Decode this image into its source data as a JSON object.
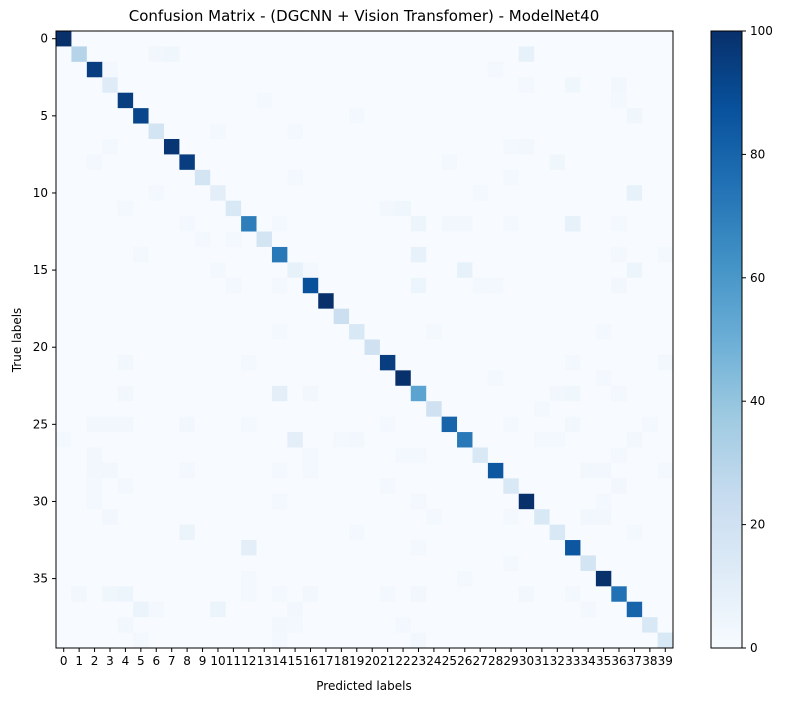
{
  "chart_data": {
    "type": "heatmap",
    "title": "Confusion Matrix - (DGCNN + Vision Transfomer) - ModelNet40",
    "xlabel": "Predicted labels",
    "ylabel": "True labels",
    "x_categories": [
      "0",
      "1",
      "2",
      "3",
      "4",
      "5",
      "6",
      "7",
      "8",
      "9",
      "10",
      "11",
      "12",
      "13",
      "14",
      "15",
      "16",
      "17",
      "18",
      "19",
      "20",
      "21",
      "22",
      "23",
      "24",
      "25",
      "26",
      "27",
      "28",
      "29",
      "30",
      "31",
      "32",
      "33",
      "34",
      "35",
      "36",
      "37",
      "38",
      "39"
    ],
    "y_tick_labels": [
      "0",
      "5",
      "10",
      "15",
      "20",
      "25",
      "30",
      "35"
    ],
    "y_tick_values": [
      0,
      5,
      10,
      15,
      20,
      25,
      30,
      35
    ],
    "colormap": "Blues",
    "colorbar": {
      "min": 0,
      "max": 100,
      "ticks": [
        "0",
        "20",
        "40",
        "60",
        "80",
        "100"
      ],
      "tick_values": [
        0,
        20,
        40,
        60,
        80,
        100
      ]
    },
    "diagonal": [
      100,
      30,
      95,
      12,
      95,
      92,
      18,
      98,
      95,
      18,
      10,
      15,
      70,
      18,
      72,
      8,
      88,
      100,
      22,
      15,
      20,
      95,
      100,
      55,
      20,
      80,
      72,
      15,
      85,
      15,
      100,
      15,
      15,
      85,
      18,
      100,
      75,
      80,
      15,
      15
    ],
    "off_diagonal": [
      {
        "row": 1,
        "col": 6,
        "value": 3
      },
      {
        "row": 1,
        "col": 7,
        "value": 4
      },
      {
        "row": 1,
        "col": 30,
        "value": 8
      },
      {
        "row": 2,
        "col": 3,
        "value": 2
      },
      {
        "row": 2,
        "col": 28,
        "value": 2
      },
      {
        "row": 3,
        "col": 30,
        "value": 2
      },
      {
        "row": 3,
        "col": 33,
        "value": 4
      },
      {
        "row": 3,
        "col": 36,
        "value": 3
      },
      {
        "row": 4,
        "col": 13,
        "value": 2
      },
      {
        "row": 4,
        "col": 36,
        "value": 2
      },
      {
        "row": 5,
        "col": 19,
        "value": 2
      },
      {
        "row": 5,
        "col": 37,
        "value": 4
      },
      {
        "row": 6,
        "col": 10,
        "value": 2
      },
      {
        "row": 6,
        "col": 15,
        "value": 2
      },
      {
        "row": 7,
        "col": 3,
        "value": 2
      },
      {
        "row": 7,
        "col": 29,
        "value": 2
      },
      {
        "row": 7,
        "col": 30,
        "value": 3
      },
      {
        "row": 8,
        "col": 2,
        "value": 2
      },
      {
        "row": 8,
        "col": 25,
        "value": 2
      },
      {
        "row": 8,
        "col": 32,
        "value": 4
      },
      {
        "row": 9,
        "col": 15,
        "value": 2
      },
      {
        "row": 9,
        "col": 29,
        "value": 2
      },
      {
        "row": 10,
        "col": 6,
        "value": 2
      },
      {
        "row": 10,
        "col": 27,
        "value": 2
      },
      {
        "row": 10,
        "col": 37,
        "value": 8
      },
      {
        "row": 11,
        "col": 4,
        "value": 2
      },
      {
        "row": 11,
        "col": 21,
        "value": 3
      },
      {
        "row": 11,
        "col": 22,
        "value": 4
      },
      {
        "row": 12,
        "col": 8,
        "value": 2
      },
      {
        "row": 12,
        "col": 14,
        "value": 2
      },
      {
        "row": 12,
        "col": 23,
        "value": 5
      },
      {
        "row": 12,
        "col": 25,
        "value": 3
      },
      {
        "row": 12,
        "col": 26,
        "value": 3
      },
      {
        "row": 12,
        "col": 29,
        "value": 2
      },
      {
        "row": 12,
        "col": 33,
        "value": 8
      },
      {
        "row": 12,
        "col": 36,
        "value": 2
      },
      {
        "row": 13,
        "col": 9,
        "value": 2
      },
      {
        "row": 13,
        "col": 11,
        "value": 2
      },
      {
        "row": 14,
        "col": 5,
        "value": 2
      },
      {
        "row": 14,
        "col": 23,
        "value": 8
      },
      {
        "row": 14,
        "col": 36,
        "value": 2
      },
      {
        "row": 14,
        "col": 39,
        "value": 2
      },
      {
        "row": 15,
        "col": 10,
        "value": 2
      },
      {
        "row": 15,
        "col": 16,
        "value": 2
      },
      {
        "row": 15,
        "col": 26,
        "value": 8
      },
      {
        "row": 15,
        "col": 37,
        "value": 5
      },
      {
        "row": 16,
        "col": 11,
        "value": 2
      },
      {
        "row": 16,
        "col": 14,
        "value": 2
      },
      {
        "row": 16,
        "col": 23,
        "value": 5
      },
      {
        "row": 16,
        "col": 27,
        "value": 2
      },
      {
        "row": 16,
        "col": 28,
        "value": 2
      },
      {
        "row": 16,
        "col": 36,
        "value": 3
      },
      {
        "row": 19,
        "col": 14,
        "value": 2
      },
      {
        "row": 19,
        "col": 24,
        "value": 2
      },
      {
        "row": 19,
        "col": 35,
        "value": 2
      },
      {
        "row": 21,
        "col": 4,
        "value": 3
      },
      {
        "row": 21,
        "col": 12,
        "value": 2
      },
      {
        "row": 21,
        "col": 33,
        "value": 2
      },
      {
        "row": 21,
        "col": 39,
        "value": 3
      },
      {
        "row": 22,
        "col": 28,
        "value": 2
      },
      {
        "row": 22,
        "col": 35,
        "value": 2
      },
      {
        "row": 23,
        "col": 4,
        "value": 3
      },
      {
        "row": 23,
        "col": 14,
        "value": 10
      },
      {
        "row": 23,
        "col": 16,
        "value": 3
      },
      {
        "row": 23,
        "col": 32,
        "value": 3
      },
      {
        "row": 23,
        "col": 33,
        "value": 4
      },
      {
        "row": 23,
        "col": 36,
        "value": 2
      },
      {
        "row": 24,
        "col": 31,
        "value": 2
      },
      {
        "row": 25,
        "col": 2,
        "value": 3
      },
      {
        "row": 25,
        "col": 3,
        "value": 3
      },
      {
        "row": 25,
        "col": 4,
        "value": 3
      },
      {
        "row": 25,
        "col": 8,
        "value": 3
      },
      {
        "row": 25,
        "col": 12,
        "value": 2
      },
      {
        "row": 25,
        "col": 21,
        "value": 2
      },
      {
        "row": 25,
        "col": 29,
        "value": 2
      },
      {
        "row": 25,
        "col": 33,
        "value": 3
      },
      {
        "row": 25,
        "col": 38,
        "value": 2
      },
      {
        "row": 26,
        "col": 0,
        "value": 2
      },
      {
        "row": 26,
        "col": 15,
        "value": 10
      },
      {
        "row": 26,
        "col": 18,
        "value": 2
      },
      {
        "row": 26,
        "col": 19,
        "value": 3
      },
      {
        "row": 26,
        "col": 31,
        "value": 2
      },
      {
        "row": 26,
        "col": 32,
        "value": 2
      },
      {
        "row": 26,
        "col": 37,
        "value": 3
      },
      {
        "row": 27,
        "col": 2,
        "value": 3
      },
      {
        "row": 27,
        "col": 16,
        "value": 2
      },
      {
        "row": 27,
        "col": 22,
        "value": 2
      },
      {
        "row": 27,
        "col": 23,
        "value": 2
      },
      {
        "row": 27,
        "col": 36,
        "value": 2
      },
      {
        "row": 28,
        "col": 2,
        "value": 3
      },
      {
        "row": 28,
        "col": 3,
        "value": 3
      },
      {
        "row": 28,
        "col": 8,
        "value": 2
      },
      {
        "row": 28,
        "col": 14,
        "value": 2
      },
      {
        "row": 28,
        "col": 16,
        "value": 2
      },
      {
        "row": 28,
        "col": 34,
        "value": 3
      },
      {
        "row": 28,
        "col": 35,
        "value": 3
      },
      {
        "row": 28,
        "col": 39,
        "value": 2
      },
      {
        "row": 29,
        "col": 2,
        "value": 2
      },
      {
        "row": 29,
        "col": 4,
        "value": 2
      },
      {
        "row": 29,
        "col": 21,
        "value": 2
      },
      {
        "row": 29,
        "col": 36,
        "value": 3
      },
      {
        "row": 30,
        "col": 2,
        "value": 2
      },
      {
        "row": 30,
        "col": 14,
        "value": 2
      },
      {
        "row": 30,
        "col": 23,
        "value": 2
      },
      {
        "row": 30,
        "col": 35,
        "value": 2
      },
      {
        "row": 31,
        "col": 3,
        "value": 3
      },
      {
        "row": 31,
        "col": 24,
        "value": 2
      },
      {
        "row": 31,
        "col": 29,
        "value": 2
      },
      {
        "row": 31,
        "col": 34,
        "value": 3
      },
      {
        "row": 31,
        "col": 35,
        "value": 3
      },
      {
        "row": 32,
        "col": 8,
        "value": 6
      },
      {
        "row": 32,
        "col": 19,
        "value": 2
      },
      {
        "row": 32,
        "col": 37,
        "value": 2
      },
      {
        "row": 33,
        "col": 12,
        "value": 10
      },
      {
        "row": 33,
        "col": 23,
        "value": 2
      },
      {
        "row": 34,
        "col": 29,
        "value": 2
      },
      {
        "row": 35,
        "col": 12,
        "value": 2
      },
      {
        "row": 35,
        "col": 26,
        "value": 2
      },
      {
        "row": 36,
        "col": 1,
        "value": 3
      },
      {
        "row": 36,
        "col": 3,
        "value": 4
      },
      {
        "row": 36,
        "col": 4,
        "value": 5
      },
      {
        "row": 36,
        "col": 12,
        "value": 2
      },
      {
        "row": 36,
        "col": 14,
        "value": 2
      },
      {
        "row": 36,
        "col": 16,
        "value": 3
      },
      {
        "row": 36,
        "col": 21,
        "value": 2
      },
      {
        "row": 36,
        "col": 23,
        "value": 3
      },
      {
        "row": 36,
        "col": 30,
        "value": 3
      },
      {
        "row": 36,
        "col": 33,
        "value": 2
      },
      {
        "row": 37,
        "col": 5,
        "value": 6
      },
      {
        "row": 37,
        "col": 6,
        "value": 2
      },
      {
        "row": 37,
        "col": 10,
        "value": 6
      },
      {
        "row": 37,
        "col": 15,
        "value": 3
      },
      {
        "row": 37,
        "col": 34,
        "value": 2
      },
      {
        "row": 38,
        "col": 4,
        "value": 3
      },
      {
        "row": 38,
        "col": 14,
        "value": 3
      },
      {
        "row": 38,
        "col": 15,
        "value": 2
      },
      {
        "row": 38,
        "col": 22,
        "value": 2
      },
      {
        "row": 39,
        "col": 5,
        "value": 2
      },
      {
        "row": 39,
        "col": 14,
        "value": 2
      },
      {
        "row": 39,
        "col": 23,
        "value": 3
      }
    ]
  }
}
